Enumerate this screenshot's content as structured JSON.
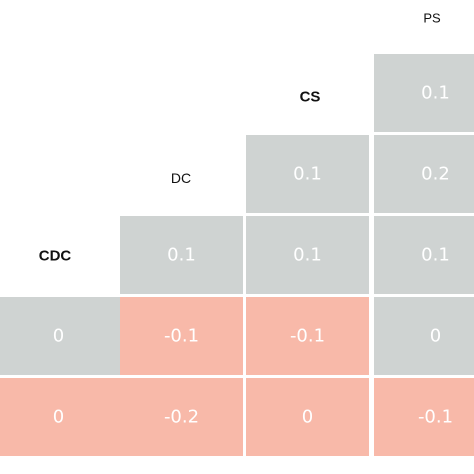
{
  "chart_data": {
    "type": "heatmap",
    "title": "",
    "variables": [
      "CDC",
      "DC",
      "CS",
      "PS"
    ],
    "cells": [
      {
        "col": "DC",
        "row": 2,
        "value": "0.1",
        "tone": "positive"
      },
      {
        "col": "CS",
        "row": 1,
        "value": "0.1",
        "tone": "positive"
      },
      {
        "col": "CS",
        "row": 2,
        "value": "0.1",
        "tone": "positive"
      },
      {
        "col": "PS",
        "row": 0,
        "value": "0.1",
        "tone": "positive"
      },
      {
        "col": "PS",
        "row": 1,
        "value": "0.2",
        "tone": "positive"
      },
      {
        "col": "PS",
        "row": 2,
        "value": "0.1",
        "tone": "positive"
      },
      {
        "col": "CDC",
        "row": 3,
        "value": "0",
        "tone": "positive"
      },
      {
        "col": "DC",
        "row": 3,
        "value": "-0.1",
        "tone": "negative"
      },
      {
        "col": "CS",
        "row": 3,
        "value": "-0.1",
        "tone": "negative"
      },
      {
        "col": "PS",
        "row": 3,
        "value": "0",
        "tone": "positive"
      },
      {
        "col": "CDC",
        "row": 4,
        "value": "0",
        "tone": "negative"
      },
      {
        "col": "DC",
        "row": 4,
        "value": "-0.2",
        "tone": "negative"
      },
      {
        "col": "CS",
        "row": 4,
        "value": "0",
        "tone": "negative"
      },
      {
        "col": "PS",
        "row": 4,
        "value": "-0.1",
        "tone": "negative"
      }
    ],
    "colors": {
      "positive": "#cfd3d2",
      "negative": "#f8b9a9",
      "grid": "#ffffff"
    }
  }
}
